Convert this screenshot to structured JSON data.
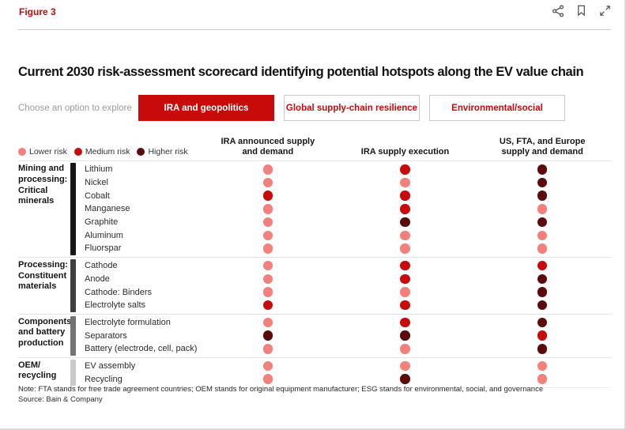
{
  "figure_label": "Figure 3",
  "title": "Current 2030 risk-assessment scorecard identifying potential hotspots along the EV value chain",
  "chooser_label": "Choose an option to explore",
  "tabs": [
    {
      "label": "IRA and geopolitics",
      "active": true
    },
    {
      "label": "Global supply-chain resilience",
      "active": false
    },
    {
      "label": "Environmental/social",
      "active": false
    }
  ],
  "legend": [
    {
      "key": "lower",
      "label": "Lower risk"
    },
    {
      "key": "medium",
      "label": "Medium risk"
    },
    {
      "key": "higher",
      "label": "Higher risk"
    }
  ],
  "risk_colors": {
    "lower": "#F4807C",
    "medium": "#C70A0A",
    "higher": "#5C0B0D"
  },
  "accent_color": "#C70B0B",
  "chart_data": {
    "type": "heatmap",
    "title": "Current 2030 risk-assessment scorecard identifying potential hotspots along the EV value chain",
    "legend_position": "top-left",
    "value_scale": [
      "lower",
      "medium",
      "higher"
    ],
    "columns": [
      [
        "IRA announced supply",
        "and demand"
      ],
      [
        "IRA supply execution"
      ],
      [
        "US, FTA, and Europe",
        "supply and demand"
      ]
    ],
    "groups": [
      {
        "label": "Mining and processing: Critical minerals",
        "bar_color": "#161616",
        "rows": [
          {
            "label": "Lithium",
            "risks": [
              "lower",
              "medium",
              "higher"
            ]
          },
          {
            "label": "Nickel",
            "risks": [
              "lower",
              "lower",
              "higher"
            ]
          },
          {
            "label": "Cobalt",
            "risks": [
              "medium",
              "medium",
              "higher"
            ]
          },
          {
            "label": "Manganese",
            "risks": [
              "lower",
              "medium",
              "lower"
            ]
          },
          {
            "label": "Graphite",
            "risks": [
              "lower",
              "higher",
              "higher"
            ]
          },
          {
            "label": "Aluminum",
            "risks": [
              "lower",
              "lower",
              "lower"
            ]
          },
          {
            "label": "Fluorspar",
            "risks": [
              "lower",
              "lower",
              "lower"
            ]
          }
        ]
      },
      {
        "label": "Processing: Constituent materials",
        "bar_color": "#3f3f3f",
        "rows": [
          {
            "label": "Cathode",
            "risks": [
              "lower",
              "medium",
              "medium"
            ]
          },
          {
            "label": "Anode",
            "risks": [
              "lower",
              "medium",
              "higher"
            ]
          },
          {
            "label": "Cathode: Binders",
            "risks": [
              "lower",
              "lower",
              "higher"
            ]
          },
          {
            "label": "Electrolyte salts",
            "risks": [
              "medium",
              "medium",
              "higher"
            ]
          }
        ]
      },
      {
        "label": "Components and battery production",
        "bar_color": "#737373",
        "rows": [
          {
            "label": "Electrolyte formulation",
            "risks": [
              "lower",
              "medium",
              "higher"
            ]
          },
          {
            "label": "Separators",
            "risks": [
              "higher",
              "higher",
              "medium"
            ]
          },
          {
            "label": "Battery (electrode, cell, pack)",
            "risks": [
              "lower",
              "lower",
              "higher"
            ]
          }
        ]
      },
      {
        "label": "OEM/ recycling",
        "bar_color": "#c9c9c9",
        "rows": [
          {
            "label": "EV assembly",
            "risks": [
              "lower",
              "lower",
              "lower"
            ]
          },
          {
            "label": "Recycling",
            "risks": [
              "lower",
              "higher",
              "lower"
            ]
          }
        ]
      }
    ]
  },
  "footnote": {
    "note": "Note: FTA stands for free trade agreement countries; OEM stands for original equipment manufacturer; ESG stands for environmental, social, and governance",
    "source": "Source: Bain & Company"
  }
}
